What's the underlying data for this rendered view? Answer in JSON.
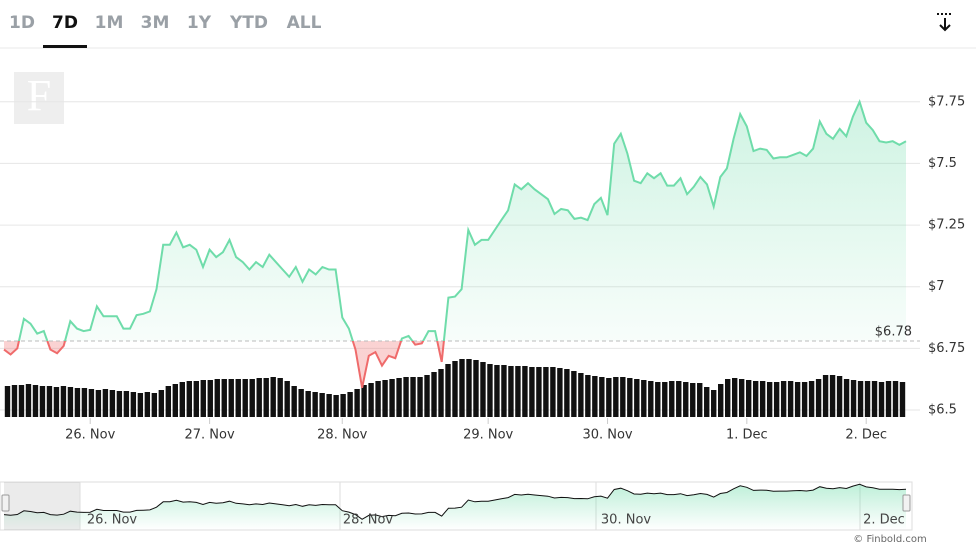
{
  "ranges": {
    "buttons": [
      "1D",
      "7D",
      "1M",
      "3M",
      "1Y",
      "YTD",
      "ALL"
    ],
    "selected": "7D"
  },
  "chart_data": {
    "type": "line",
    "values": [
      6.745,
      6.725,
      6.75,
      6.87,
      6.85,
      6.81,
      6.82,
      6.745,
      6.73,
      6.76,
      6.86,
      6.83,
      6.82,
      6.825,
      6.92,
      6.88,
      6.88,
      6.88,
      6.83,
      6.83,
      6.885,
      6.89,
      6.9,
      6.99,
      7.17,
      7.17,
      7.22,
      7.16,
      7.17,
      7.15,
      7.08,
      7.15,
      7.12,
      7.14,
      7.19,
      7.12,
      7.1,
      7.07,
      7.1,
      7.08,
      7.13,
      7.1,
      7.07,
      7.04,
      7.08,
      7.02,
      7.07,
      7.05,
      7.08,
      7.07,
      7.07,
      6.875,
      6.83,
      6.745,
      6.59,
      6.72,
      6.735,
      6.68,
      6.72,
      6.71,
      6.79,
      6.8,
      6.765,
      6.77,
      6.82,
      6.82,
      6.695,
      6.956,
      6.96,
      6.99,
      7.23,
      7.17,
      7.19,
      7.19,
      7.23,
      7.27,
      7.31,
      7.415,
      7.395,
      7.42,
      7.395,
      7.375,
      7.355,
      7.295,
      7.315,
      7.31,
      7.275,
      7.28,
      7.27,
      7.335,
      7.36,
      7.29,
      7.58,
      7.62,
      7.54,
      7.43,
      7.42,
      7.46,
      7.44,
      7.46,
      7.41,
      7.41,
      7.44,
      7.375,
      7.405,
      7.445,
      7.415,
      7.325,
      7.445,
      7.48,
      7.6,
      7.7,
      7.65,
      7.55,
      7.56,
      7.555,
      7.52,
      7.525,
      7.525,
      7.535,
      7.545,
      7.53,
      7.56,
      7.67,
      7.62,
      7.6,
      7.64,
      7.61,
      7.69,
      7.75,
      7.665,
      7.635,
      7.59,
      7.585,
      7.59,
      7.575,
      7.59
    ],
    "color_up": "#6fdcaa",
    "color_down": "#ef6b6b",
    "reference": {
      "value": 6.78,
      "label": "$6.78"
    },
    "ylim": [
      6.5,
      7.96
    ],
    "yticks": [
      {
        "value": 6.5,
        "label": "$6.5"
      },
      {
        "value": 6.75,
        "label": "$6.75"
      },
      {
        "value": 7,
        "label": "$7"
      },
      {
        "value": 7.25,
        "label": "$7.25"
      },
      {
        "value": 7.5,
        "label": "$7.5"
      },
      {
        "value": 7.75,
        "label": "$7.75"
      }
    ],
    "xticks": [
      {
        "value": 13,
        "label": "26. Nov"
      },
      {
        "value": 31,
        "label": "27. Nov"
      },
      {
        "value": 51,
        "label": "28. Nov"
      },
      {
        "value": 73,
        "label": "29. Nov"
      },
      {
        "value": 91,
        "label": "30. Nov"
      },
      {
        "value": 112,
        "label": "1. Dec"
      },
      {
        "value": 130,
        "label": "2. Dec"
      }
    ],
    "grid": true,
    "volume": {
      "color": "#111111",
      "values": [
        31,
        32,
        32,
        33,
        32,
        31,
        31,
        30,
        31,
        30,
        29,
        29,
        28,
        27,
        28,
        27,
        26,
        26,
        25,
        24,
        25,
        24,
        27,
        31,
        33,
        35,
        36,
        36,
        37,
        37,
        38,
        38,
        38,
        38,
        38,
        38,
        39,
        39,
        40,
        39,
        36,
        31,
        28,
        26,
        25,
        24,
        23,
        22,
        23,
        25,
        28,
        32,
        34,
        36,
        37,
        38,
        39,
        40,
        40,
        40,
        42,
        45,
        48,
        53,
        56,
        58,
        58,
        57,
        55,
        53,
        52,
        52,
        51,
        51,
        51,
        50,
        50,
        50,
        50,
        49,
        48,
        46,
        44,
        42,
        41,
        40,
        39,
        40,
        40,
        39,
        38,
        37,
        36,
        35,
        35,
        36,
        36,
        35,
        34,
        34,
        30,
        27,
        33,
        38,
        39,
        38,
        37,
        36,
        36,
        35,
        35,
        36,
        36,
        35,
        35,
        36,
        38,
        42,
        42,
        41,
        38,
        37,
        36,
        36,
        36,
        35,
        36,
        36,
        35
      ]
    }
  },
  "navigator": {
    "labels": [
      "26. Nov",
      "28. Nov",
      "30. Nov",
      "2. Dec"
    ]
  },
  "credit": "© Finbold.com"
}
